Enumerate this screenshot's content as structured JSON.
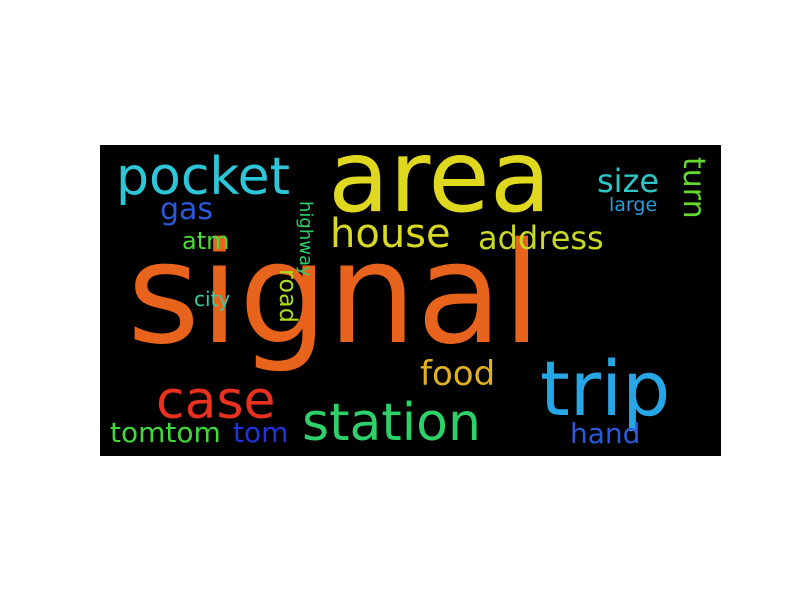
{
  "wordcloud": {
    "background": "#000000",
    "words": [
      {
        "text": "signal",
        "color": "#e8641c"
      },
      {
        "text": "area",
        "color": "#e0d81f"
      },
      {
        "text": "pocket",
        "color": "#2dc6d9"
      },
      {
        "text": "trip",
        "color": "#26a6e6"
      },
      {
        "text": "station",
        "color": "#2ed06a"
      },
      {
        "text": "case",
        "color": "#e8311f"
      },
      {
        "text": "house",
        "color": "#d9d91f"
      },
      {
        "text": "address",
        "color": "#c9d91f"
      },
      {
        "text": "size",
        "color": "#2dc6c6"
      },
      {
        "text": "turn",
        "color": "#66d92e"
      },
      {
        "text": "gas",
        "color": "#2a5ad9"
      },
      {
        "text": "atm",
        "color": "#4fd93a"
      },
      {
        "text": "food",
        "color": "#e0b21f"
      },
      {
        "text": "tomtom",
        "color": "#3fd93a"
      },
      {
        "text": "tom",
        "color": "#2233d9"
      },
      {
        "text": "hand",
        "color": "#2a5ad9"
      },
      {
        "text": "road",
        "color": "#aed91f"
      },
      {
        "text": "highway",
        "color": "#2ed06a"
      },
      {
        "text": "city",
        "color": "#2ed0a8"
      },
      {
        "text": "large",
        "color": "#2a9ad9"
      }
    ]
  }
}
